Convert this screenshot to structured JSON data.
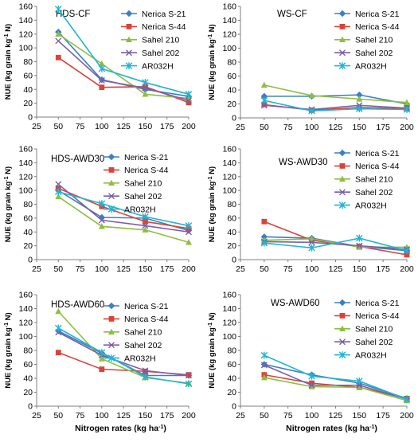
{
  "colors": {
    "Nerica S-21": "#3b7fc4",
    "Nerica S-44": "#d9443a",
    "Sahel 210": "#8cbf3f",
    "Sahel 202": "#7b5ea7",
    "AR032H": "#1fb5d4"
  },
  "markers": {
    "Nerica S-21": "diamond",
    "Nerica S-44": "square",
    "Sahel 210": "triangle",
    "Sahel 202": "x",
    "AR032H": "star"
  },
  "chart_data": [
    {
      "type": "line",
      "title": "HDS-CF",
      "xlabel": "",
      "ylabel": "NUE (kg grain kg-1 N)",
      "xlim": [
        25,
        200
      ],
      "ylim": [
        0,
        160
      ],
      "xticks": [
        25,
        50,
        75,
        100,
        125,
        150,
        175,
        200
      ],
      "yticks": [
        0,
        20,
        40,
        60,
        80,
        100,
        120,
        140,
        160
      ],
      "x": [
        50,
        100,
        150,
        200
      ],
      "legend_position": "top-right",
      "series": [
        {
          "name": "Nerica S-21",
          "values": [
            123,
            54,
            40,
            30
          ]
        },
        {
          "name": "Nerica S-44",
          "values": [
            86,
            43,
            44,
            21
          ]
        },
        {
          "name": "Sahel 210",
          "values": [
            120,
            77,
            33,
            27
          ]
        },
        {
          "name": "Sahel 202",
          "values": [
            110,
            53,
            42,
            24
          ]
        },
        {
          "name": "AR032H",
          "values": [
            156,
            70,
            50,
            33
          ]
        }
      ]
    },
    {
      "type": "line",
      "title": "WS-CF",
      "xlabel": "",
      "ylabel": "NUE (kg grain kg-1 N)",
      "xlim": [
        25,
        200
      ],
      "ylim": [
        0,
        160
      ],
      "xticks": [
        25,
        50,
        75,
        100,
        125,
        150,
        175,
        200
      ],
      "yticks": [
        0,
        20,
        40,
        60,
        80,
        100,
        120,
        140,
        160
      ],
      "x": [
        50,
        100,
        150,
        200
      ],
      "legend_position": "top-right",
      "series": [
        {
          "name": "Nerica S-21",
          "values": [
            31,
            31,
            33,
            20
          ]
        },
        {
          "name": "Nerica S-44",
          "values": [
            19,
            11,
            15,
            13
          ]
        },
        {
          "name": "Sahel 210",
          "values": [
            47,
            32,
            27,
            22
          ]
        },
        {
          "name": "Sahel 202",
          "values": [
            18,
            12,
            18,
            14
          ]
        },
        {
          "name": "AR032H",
          "values": [
            25,
            10,
            13,
            12
          ]
        }
      ]
    },
    {
      "type": "line",
      "title": "HDS-AWD30",
      "xlabel": "",
      "ylabel": "NUE (kg grain kg-1 N)",
      "xlim": [
        25,
        200
      ],
      "ylim": [
        0,
        160
      ],
      "xticks": [
        25,
        50,
        75,
        100,
        125,
        150,
        175,
        200
      ],
      "yticks": [
        0,
        20,
        40,
        60,
        80,
        100,
        120,
        140,
        160
      ],
      "x": [
        50,
        100,
        150,
        200
      ],
      "legend_position": "top-right",
      "series": [
        {
          "name": "Nerica S-21",
          "values": [
            100,
            61,
            60,
            42
          ]
        },
        {
          "name": "Nerica S-44",
          "values": [
            103,
            77,
            55,
            45
          ]
        },
        {
          "name": "Sahel 210",
          "values": [
            91,
            48,
            43,
            25
          ]
        },
        {
          "name": "Sahel 202",
          "values": [
            109,
            57,
            49,
            40
          ]
        },
        {
          "name": "AR032H",
          "values": [
            98,
            81,
            62,
            49
          ]
        }
      ]
    },
    {
      "type": "line",
      "title": "WS-AWD30",
      "xlabel": "",
      "ylabel": "NUE (kg grain kg-1 N)",
      "xlim": [
        25,
        200
      ],
      "ylim": [
        0,
        160
      ],
      "xticks": [
        25,
        50,
        75,
        100,
        125,
        150,
        175,
        200
      ],
      "yticks": [
        0,
        20,
        40,
        60,
        80,
        100,
        120,
        140,
        160
      ],
      "x": [
        50,
        100,
        150,
        200
      ],
      "legend_position": "top-right",
      "series": [
        {
          "name": "Nerica S-21",
          "values": [
            33,
            31,
            19,
            13
          ]
        },
        {
          "name": "Nerica S-44",
          "values": [
            55,
            28,
            19,
            7
          ]
        },
        {
          "name": "Sahel 210",
          "values": [
            28,
            30,
            18,
            18
          ]
        },
        {
          "name": "Sahel 202",
          "values": [
            26,
            25,
            20,
            15
          ]
        },
        {
          "name": "AR032H",
          "values": [
            24,
            17,
            31,
            13
          ]
        }
      ]
    },
    {
      "type": "line",
      "title": "HDS-AWD60",
      "xlabel": "Nitrogen rates (kg ha-1)",
      "ylabel": "NUE (kg grain kg-1 N)",
      "xlim": [
        25,
        200
      ],
      "ylim": [
        0,
        160
      ],
      "xticks": [
        25,
        50,
        75,
        100,
        125,
        150,
        175,
        200
      ],
      "yticks": [
        0,
        20,
        40,
        60,
        80,
        100,
        120,
        140,
        160
      ],
      "x": [
        50,
        100,
        150,
        200
      ],
      "legend_position": "top-right",
      "series": [
        {
          "name": "Nerica S-21",
          "values": [
            108,
            76,
            44,
            44
          ]
        },
        {
          "name": "Nerica S-44",
          "values": [
            77,
            53,
            50,
            45
          ]
        },
        {
          "name": "Sahel 210",
          "values": [
            136,
            68,
            41,
            33
          ]
        },
        {
          "name": "Sahel 202",
          "values": [
            106,
            73,
            51,
            44
          ]
        },
        {
          "name": "AR032H",
          "values": [
            112,
            77,
            42,
            32
          ]
        }
      ]
    },
    {
      "type": "line",
      "title": "WS-AWD60",
      "xlabel": "Nitrogen rates (kg ha-1)",
      "ylabel": "NUE (kg grain kg-1 N)",
      "xlim": [
        25,
        200
      ],
      "ylim": [
        0,
        160
      ],
      "xticks": [
        25,
        50,
        75,
        100,
        125,
        150,
        175,
        200
      ],
      "yticks": [
        0,
        20,
        40,
        60,
        80,
        100,
        120,
        140,
        160
      ],
      "x": [
        50,
        100,
        150,
        200
      ],
      "legend_position": "top-right",
      "series": [
        {
          "name": "Nerica S-21",
          "values": [
            60,
            45,
            33,
            11
          ]
        },
        {
          "name": "Nerica S-44",
          "values": [
            45,
            33,
            27,
            11
          ]
        },
        {
          "name": "Sahel 210",
          "values": [
            41,
            28,
            27,
            8
          ]
        },
        {
          "name": "Sahel 202",
          "values": [
            59,
            30,
            30,
            10
          ]
        },
        {
          "name": "AR032H",
          "values": [
            73,
            43,
            36,
            10
          ]
        }
      ]
    }
  ]
}
